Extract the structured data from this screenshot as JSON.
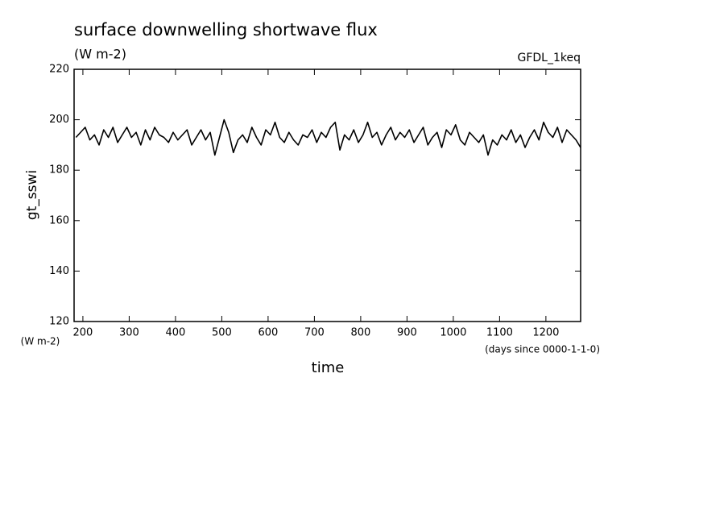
{
  "chart_data": {
    "type": "line",
    "title": "surface downwelling shortwave flux",
    "subtitle": "(W m-2)",
    "annotation": "GFDL_1keq",
    "y_label": "gt_sswi",
    "y_units": "(W m-2)",
    "x_label": "time",
    "x_units": "(days since 0000-1-1-0)",
    "x": [
      185,
      195,
      205,
      215,
      225,
      235,
      245,
      255,
      265,
      275,
      285,
      295,
      305,
      315,
      325,
      335,
      345,
      355,
      365,
      375,
      385,
      395,
      405,
      415,
      425,
      435,
      445,
      455,
      465,
      475,
      485,
      495,
      505,
      515,
      525,
      535,
      545,
      555,
      565,
      575,
      585,
      595,
      605,
      615,
      625,
      635,
      645,
      655,
      665,
      675,
      685,
      695,
      705,
      715,
      725,
      735,
      745,
      755,
      765,
      775,
      785,
      795,
      805,
      815,
      825,
      835,
      845,
      855,
      865,
      875,
      885,
      895,
      905,
      915,
      925,
      935,
      945,
      955,
      965,
      975,
      985,
      995,
      1005,
      1015,
      1025,
      1035,
      1045,
      1055,
      1065,
      1075,
      1085,
      1095,
      1105,
      1115,
      1125,
      1135,
      1145,
      1155,
      1165,
      1175,
      1185,
      1195,
      1205,
      1215,
      1225,
      1235,
      1245,
      1255,
      1265,
      1275
    ],
    "series": [
      {
        "name": "gt_sswi",
        "color": "#000000",
        "values": [
          193,
          195,
          197,
          192,
          194,
          190,
          196,
          193,
          197,
          191,
          194,
          197,
          193,
          195,
          190,
          196,
          192,
          197,
          194,
          193,
          191,
          195,
          192,
          194,
          196,
          190,
          193,
          196,
          192,
          195,
          186,
          193,
          200,
          195,
          187,
          192,
          194,
          191,
          197,
          193,
          190,
          196,
          194,
          199,
          193,
          191,
          195,
          192,
          190,
          194,
          193,
          196,
          191,
          195,
          193,
          197,
          199,
          188,
          194,
          192,
          196,
          191,
          194,
          199,
          193,
          195,
          190,
          194,
          197,
          192,
          195,
          193,
          196,
          191,
          194,
          197,
          190,
          193,
          195,
          189,
          196,
          194,
          198,
          192,
          190,
          195,
          193,
          191,
          194,
          186,
          192,
          190,
          194,
          192,
          196,
          191,
          194,
          189,
          193,
          196,
          192,
          199,
          195,
          193,
          197,
          191,
          196,
          194,
          192,
          189
        ]
      }
    ],
    "xlim": [
      181,
      1275
    ],
    "ylim": [
      120,
      220
    ],
    "xticks": [
      200,
      300,
      400,
      500,
      600,
      700,
      800,
      900,
      1000,
      1100,
      1200
    ],
    "yticks": [
      120,
      140,
      160,
      180,
      200,
      220
    ]
  }
}
